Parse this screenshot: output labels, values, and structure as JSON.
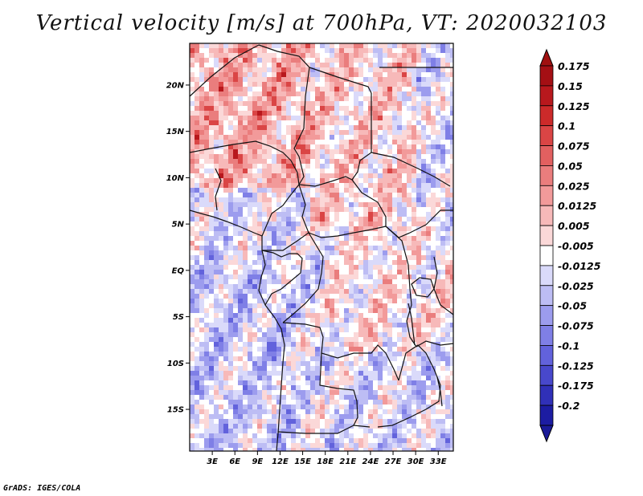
{
  "title": "Vertical velocity [m/s] at 700hPa, VT: 2020032103",
  "footer": "GrADS: IGES/COLA",
  "map": {
    "lon_range": [
      0,
      35
    ],
    "lat_range": [
      -19.5,
      24.5
    ],
    "lat_ticks": [
      {
        "value": 20,
        "label": "20N"
      },
      {
        "value": 15,
        "label": "15N"
      },
      {
        "value": 10,
        "label": "10N"
      },
      {
        "value": 5,
        "label": "5N"
      },
      {
        "value": 0,
        "label": "EQ"
      },
      {
        "value": -5,
        "label": "5S"
      },
      {
        "value": -10,
        "label": "10S"
      },
      {
        "value": -15,
        "label": "15S"
      }
    ],
    "lon_ticks": [
      {
        "value": 3,
        "label": "3E"
      },
      {
        "value": 6,
        "label": "6E"
      },
      {
        "value": 9,
        "label": "9E"
      },
      {
        "value": 12,
        "label": "12E"
      },
      {
        "value": 15,
        "label": "15E"
      },
      {
        "value": 18,
        "label": "18E"
      },
      {
        "value": 21,
        "label": "21E"
      },
      {
        "value": 24,
        "label": "24E"
      },
      {
        "value": 27,
        "label": "27E"
      },
      {
        "value": 30,
        "label": "30E"
      },
      {
        "value": 33,
        "label": "33E"
      }
    ]
  },
  "colorbar": {
    "levels": [
      {
        "label": "0.175",
        "color": "#a40f14"
      },
      {
        "label": "0.15",
        "color": "#b8181d"
      },
      {
        "label": "0.125",
        "color": "#cc2a2a"
      },
      {
        "label": "0.1",
        "color": "#da4545"
      },
      {
        "label": "0.075",
        "color": "#e26060"
      },
      {
        "label": "0.05",
        "color": "#ea7d7d"
      },
      {
        "label": "0.025",
        "color": "#f29a9a"
      },
      {
        "label": "0.0125",
        "color": "#f7b9b9"
      },
      {
        "label": "0.005",
        "color": "#fbd8d8"
      },
      {
        "label": "-0.005",
        "color": "#ffffff"
      },
      {
        "label": "-0.0125",
        "color": "#dadafa"
      },
      {
        "label": "-0.025",
        "color": "#bdbdf4"
      },
      {
        "label": "-0.05",
        "color": "#9c9cee"
      },
      {
        "label": "-0.075",
        "color": "#7f7fe6"
      },
      {
        "label": "-0.1",
        "color": "#6262dc"
      },
      {
        "label": "-0.125",
        "color": "#4848cc"
      },
      {
        "label": "-0.175",
        "color": "#3030b8"
      },
      {
        "label": "-0.2",
        "color": "#1c1ca2"
      }
    ],
    "above_color": "#a01010",
    "below_color": "#1a1a98"
  }
}
